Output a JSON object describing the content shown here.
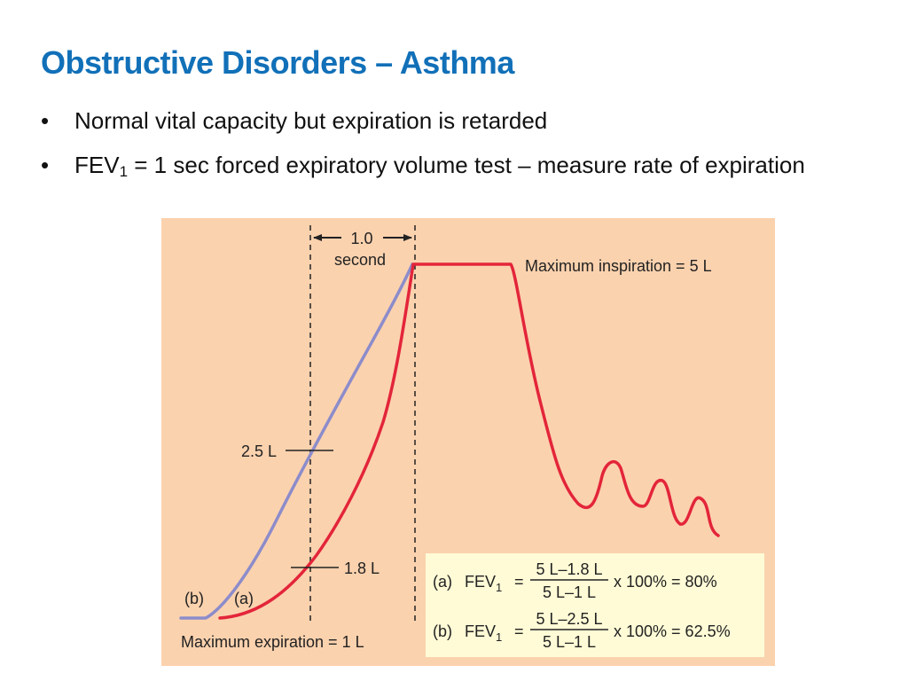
{
  "slide": {
    "title": "Obstructive Disorders – Asthma",
    "bullets": [
      {
        "text": "Normal vital capacity but expiration is retarded"
      },
      {
        "pre": "FEV",
        "sub": "1",
        "post": " = 1 sec forced expiratory volume test – measure rate of expiration"
      }
    ]
  },
  "figure": {
    "background_color": "#FBD2AE",
    "box_color": "#FFFBD6",
    "curve_a_color": "#E3253A",
    "curve_b_color": "#8C8CCB",
    "interval_value": "1.0",
    "interval_unit": "second",
    "max_inspiration": "Maximum inspiration = 5 L",
    "max_expiration": "Maximum expiration = 1 L",
    "mark_b": "2.5 L",
    "mark_a": "1.8 L",
    "curve_b_label": "(b)",
    "curve_a_label": "(a)",
    "formulas": [
      {
        "label": "(a)",
        "lhs": "FEV",
        "lhs_sub": "1",
        "eq": "=",
        "numerator": "5 L–1.8 L",
        "denominator": "5 L–1 L",
        "result": "x 100% = 80%"
      },
      {
        "label": "(b)",
        "lhs": "FEV",
        "lhs_sub": "1",
        "eq": "=",
        "numerator": "5 L–2.5 L",
        "denominator": "5 L–1 L",
        "result": "x 100% = 62.5%"
      }
    ]
  }
}
